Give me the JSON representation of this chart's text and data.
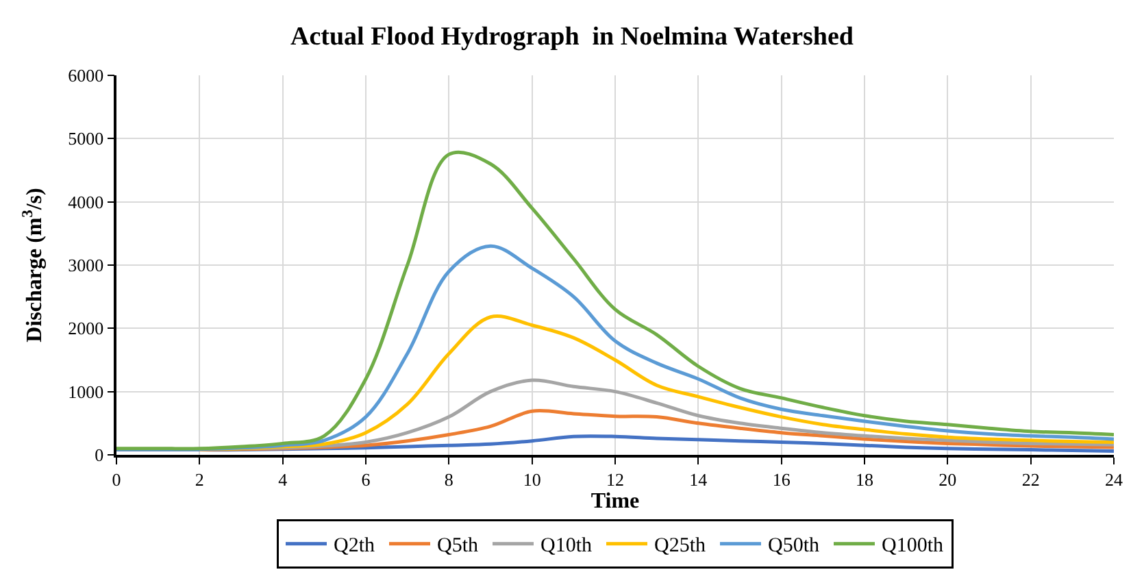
{
  "chart_data": {
    "type": "line",
    "title": "Actual Flood Hydrograph  in Noelmina Watershed",
    "xlabel": "Time",
    "ylabel": "Discharge (m$^{3}$/s)",
    "x": [
      0,
      1,
      2,
      3,
      4,
      5,
      6,
      7,
      8,
      9,
      10,
      11,
      12,
      13,
      14,
      15,
      16,
      17,
      18,
      19,
      20,
      21,
      22,
      23,
      24
    ],
    "series": [
      {
        "name": "Q2th",
        "color": "#4472c4",
        "values": [
          80,
          80,
          80,
          80,
          90,
          100,
          110,
          130,
          150,
          170,
          220,
          290,
          290,
          260,
          240,
          220,
          200,
          180,
          150,
          120,
          100,
          90,
          80,
          70,
          60
        ]
      },
      {
        "name": "Q5th",
        "color": "#ed7d31",
        "values": [
          null,
          null,
          80,
          90,
          100,
          120,
          150,
          220,
          320,
          450,
          690,
          650,
          610,
          600,
          500,
          420,
          350,
          300,
          250,
          210,
          180,
          160,
          140,
          130,
          120
        ]
      },
      {
        "name": "Q10th",
        "color": "#a5a5a5",
        "values": [
          90,
          90,
          90,
          100,
          110,
          140,
          200,
          350,
          600,
          1000,
          1180,
          1080,
          1000,
          820,
          620,
          500,
          420,
          350,
          300,
          260,
          230,
          200,
          180,
          170,
          160
        ]
      },
      {
        "name": "Q25th",
        "color": "#ffc000",
        "values": [
          null,
          null,
          90,
          100,
          130,
          170,
          350,
          800,
          1600,
          2180,
          2050,
          1850,
          1500,
          1100,
          920,
          750,
          600,
          480,
          400,
          330,
          280,
          250,
          230,
          210,
          200
        ]
      },
      {
        "name": "Q50th",
        "color": "#5b9bd5",
        "values": [
          90,
          90,
          90,
          110,
          150,
          230,
          600,
          1600,
          2900,
          3300,
          2950,
          2500,
          1800,
          1450,
          1200,
          900,
          720,
          620,
          530,
          450,
          380,
          330,
          300,
          280,
          250
        ]
      },
      {
        "name": "Q100th",
        "color": "#70ad47",
        "values": [
          100,
          100,
          100,
          130,
          180,
          300,
          1200,
          3000,
          4750,
          4600,
          3900,
          3100,
          2300,
          1900,
          1400,
          1050,
          900,
          750,
          620,
          530,
          480,
          420,
          370,
          350,
          320
        ]
      }
    ],
    "xlim": [
      0,
      24
    ],
    "xticks": [
      0,
      2,
      4,
      6,
      8,
      10,
      12,
      14,
      16,
      18,
      20,
      22,
      24
    ],
    "ylim": [
      0,
      6000
    ],
    "yticks": [
      0,
      1000,
      2000,
      3000,
      4000,
      5000,
      6000
    ],
    "grid": true,
    "legend": "bottom",
    "marker": "none",
    "line_style": "solid"
  }
}
